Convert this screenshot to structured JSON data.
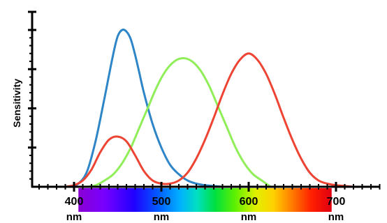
{
  "chart_data": {
    "type": "line",
    "title": "",
    "xlabel": "",
    "ylabel": "Sensitivity",
    "xlim": [
      350,
      750
    ],
    "ylim": [
      0,
      1.0
    ],
    "x_ticks": [
      {
        "value": 400,
        "label": "400",
        "unit": "nm"
      },
      {
        "value": 500,
        "label": "500",
        "unit": "nm"
      },
      {
        "value": 600,
        "label": "600",
        "unit": "nm"
      },
      {
        "value": 700,
        "label": "700",
        "unit": "nm"
      }
    ],
    "y_major_ticks": [
      0.25,
      0.5,
      0.75,
      1.0
    ],
    "spectrum_bar": {
      "range": [
        405,
        695
      ]
    },
    "grid": false,
    "legend": "none",
    "series": [
      {
        "color": "#2e86c8",
        "x": [
          395,
          405,
          415,
          425,
          435,
          445,
          450,
          455,
          460,
          465,
          470,
          475,
          480,
          490,
          500,
          510,
          520,
          530,
          540,
          550,
          560,
          570
        ],
        "y": [
          0.0,
          0.02,
          0.1,
          0.3,
          0.57,
          0.85,
          0.96,
          1.0,
          0.99,
          0.94,
          0.84,
          0.72,
          0.6,
          0.4,
          0.25,
          0.14,
          0.08,
          0.04,
          0.02,
          0.01,
          0.005,
          0.0
        ]
      },
      {
        "color": "#90ee58",
        "x": [
          415,
          425,
          435,
          445,
          455,
          465,
          475,
          485,
          495,
          505,
          515,
          525,
          535,
          545,
          555,
          565,
          575,
          585,
          595,
          605,
          615,
          625
        ],
        "y": [
          0.0,
          0.01,
          0.04,
          0.08,
          0.15,
          0.25,
          0.38,
          0.51,
          0.64,
          0.74,
          0.8,
          0.82,
          0.8,
          0.74,
          0.64,
          0.51,
          0.38,
          0.25,
          0.15,
          0.08,
          0.04,
          0.0
        ]
      },
      {
        "color": "#ee4433",
        "x": [
          390,
          400,
          410,
          420,
          430,
          440,
          450,
          460,
          470,
          480,
          490,
          500,
          510,
          520,
          530,
          540,
          550,
          560,
          570,
          580,
          590,
          600,
          610,
          620,
          630,
          640,
          650,
          660,
          670,
          680,
          690,
          700,
          710,
          720,
          730
        ],
        "y": [
          0.0,
          0.01,
          0.04,
          0.11,
          0.22,
          0.3,
          0.32,
          0.29,
          0.2,
          0.1,
          0.04,
          0.02,
          0.02,
          0.04,
          0.09,
          0.18,
          0.3,
          0.44,
          0.59,
          0.72,
          0.81,
          0.85,
          0.81,
          0.72,
          0.59,
          0.44,
          0.3,
          0.18,
          0.09,
          0.04,
          0.02,
          0.01,
          0.005,
          0.0,
          0.0
        ]
      }
    ]
  }
}
